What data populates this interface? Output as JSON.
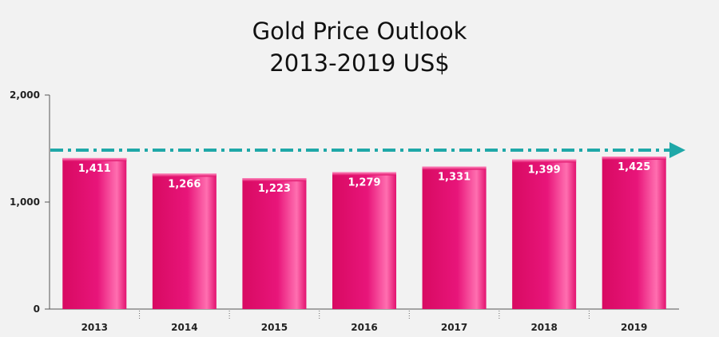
{
  "chart_data": {
    "type": "bar",
    "title_lines": [
      "Gold Price Outlook",
      "2013-2019 US$"
    ],
    "categories": [
      "2013",
      "2014",
      "2015",
      "2016",
      "2017",
      "2018",
      "2019"
    ],
    "values": [
      1411,
      1266,
      1223,
      1279,
      1331,
      1399,
      1425
    ],
    "data_labels": [
      "1,411",
      "1,266",
      "1,223",
      "1,279",
      "1,331",
      "1,399",
      "1,425"
    ],
    "ylim": [
      0,
      2000
    ],
    "yticks": [
      0,
      1000,
      2000
    ],
    "ytick_labels": [
      "0",
      "1,000",
      "2,000"
    ],
    "trend_line_value": 1425,
    "xlabel": "",
    "ylabel": "",
    "grid": false,
    "bar_color": "#e0106a",
    "trend_color": "#1fa8a8"
  }
}
